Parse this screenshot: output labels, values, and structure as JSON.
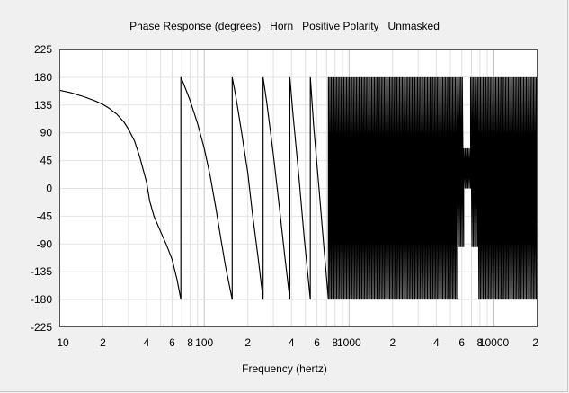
{
  "chart_data": {
    "type": "line",
    "title": "Phase Response (degrees)   Horn   Positive Polarity   Unmasked",
    "xlabel": "Frequency (hertz)",
    "ylabel": "",
    "x_scale": "log",
    "xlim": [
      10,
      20000
    ],
    "ylim": [
      -225,
      225
    ],
    "y_ticks": [
      225,
      180,
      135,
      90,
      45,
      0,
      -45,
      -90,
      -135,
      -180,
      -225
    ],
    "y_tick_labels": [
      "225",
      "180",
      "135",
      "90",
      "45",
      "0",
      "-45",
      "-90",
      "-135",
      "-180",
      "-225"
    ],
    "x_ticks": [
      10,
      20,
      40,
      60,
      80,
      100,
      200,
      400,
      600,
      800,
      1000,
      2000,
      4000,
      6000,
      8000,
      10000,
      20000
    ],
    "x_tick_labels": [
      "10",
      "2",
      "4",
      "6",
      "8",
      "100",
      "2",
      "4",
      "6",
      "8",
      "1000",
      "2",
      "4",
      "6",
      "8",
      "10000",
      "2"
    ],
    "grid": true,
    "color": "#000000",
    "series": [
      {
        "values": [
          [
            10,
            159
          ],
          [
            12,
            155
          ],
          [
            15,
            148
          ],
          [
            18,
            141
          ],
          [
            20,
            136
          ],
          [
            22,
            130
          ],
          [
            25,
            120
          ],
          [
            28,
            107
          ],
          [
            30,
            96
          ],
          [
            33,
            77
          ],
          [
            36,
            50
          ],
          [
            40,
            10
          ],
          [
            42,
            -20
          ],
          [
            45,
            -45
          ],
          [
            50,
            -70
          ],
          [
            55,
            -92
          ],
          [
            60,
            -115
          ],
          [
            65,
            -148
          ],
          [
            69,
            -180
          ],
          [
            69,
            180
          ],
          [
            72,
            170
          ],
          [
            80,
            142
          ],
          [
            90,
            105
          ],
          [
            100,
            65
          ],
          [
            110,
            20
          ],
          [
            120,
            -30
          ],
          [
            130,
            -80
          ],
          [
            140,
            -125
          ],
          [
            150,
            -160
          ],
          [
            156,
            -180
          ],
          [
            156,
            180
          ],
          [
            165,
            150
          ],
          [
            180,
            95
          ],
          [
            200,
            25
          ],
          [
            215,
            -40
          ],
          [
            235,
            -110
          ],
          [
            255,
            -180
          ],
          [
            255,
            180
          ],
          [
            270,
            140
          ],
          [
            300,
            55
          ],
          [
            330,
            -30
          ],
          [
            360,
            -110
          ],
          [
            390,
            -180
          ],
          [
            390,
            180
          ],
          [
            410,
            120
          ],
          [
            450,
            20
          ],
          [
            490,
            -80
          ],
          [
            540,
            -180
          ],
          [
            540,
            180
          ],
          [
            570,
            100
          ],
          [
            620,
            0
          ],
          [
            670,
            -95
          ],
          [
            720,
            -180
          ]
        ],
        "oscillation": {
          "start_hz": 720,
          "end_hz": 20000,
          "min_deg": -180,
          "max_deg": 180,
          "wraps": 150,
          "dip": {
            "center_hz": 6500,
            "min_deg": 0,
            "max_deg": 65
          }
        }
      }
    ]
  }
}
